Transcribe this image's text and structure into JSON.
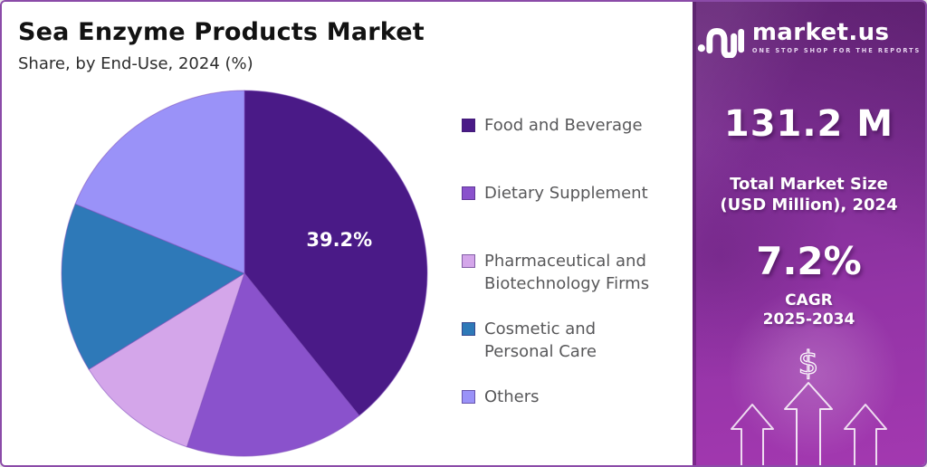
{
  "header": {
    "title": "Sea Enzyme Products Market",
    "subtitle": "Share, by End-Use, 2024 (%)"
  },
  "chart_data": {
    "type": "pie",
    "title": "Sea Enzyme Products Market",
    "subtitle": "Share, by End-Use, 2024 (%)",
    "unit": "%",
    "start_angle_deg": 0,
    "direction": "clockwise",
    "legend_position": "right",
    "slices": [
      {
        "label": "Food and Beverage",
        "value": 39.2,
        "data_label": "39.2%",
        "color": "#4a1a87",
        "legend_lines": [
          "Food and Beverage"
        ]
      },
      {
        "label": "Dietary Supplement",
        "value": 15.9,
        "data_label": "",
        "color": "#8a52cc",
        "legend_lines": [
          "Dietary Supplement"
        ]
      },
      {
        "label": "Pharmaceutical and Biotechnology Firms",
        "value": 11.1,
        "data_label": "",
        "color": "#d4a6ea",
        "legend_lines": [
          "Pharmaceutical and",
          "Biotechnology Firms"
        ]
      },
      {
        "label": "Cosmetic and Personal Care",
        "value": 15.0,
        "data_label": "",
        "color": "#2e79b8",
        "legend_lines": [
          "Cosmetic and",
          "Personal Care"
        ]
      },
      {
        "label": "Others",
        "value": 18.8,
        "data_label": "",
        "color": "#9a92f8",
        "legend_lines": [
          "Others"
        ]
      }
    ],
    "note": "Only the 39.2% slice is labeled in the chart; other values estimated from slice angles."
  },
  "sidebar": {
    "brand": {
      "name": "market.us",
      "tagline": "ONE STOP SHOP FOR THE REPORTS"
    },
    "market_size_value": "131.2 M",
    "market_size_label_line1": "Total Market Size",
    "market_size_label_line2": "(USD Million), 2024",
    "cagr_value": "7.2%",
    "cagr_label_line1": "CAGR",
    "cagr_label_line2": "2025-2034",
    "currency_symbol": "$",
    "colors": {
      "background_top": "#702b83",
      "background_bottom": "#a338b0",
      "frame_border": "#8b4ba8"
    }
  }
}
